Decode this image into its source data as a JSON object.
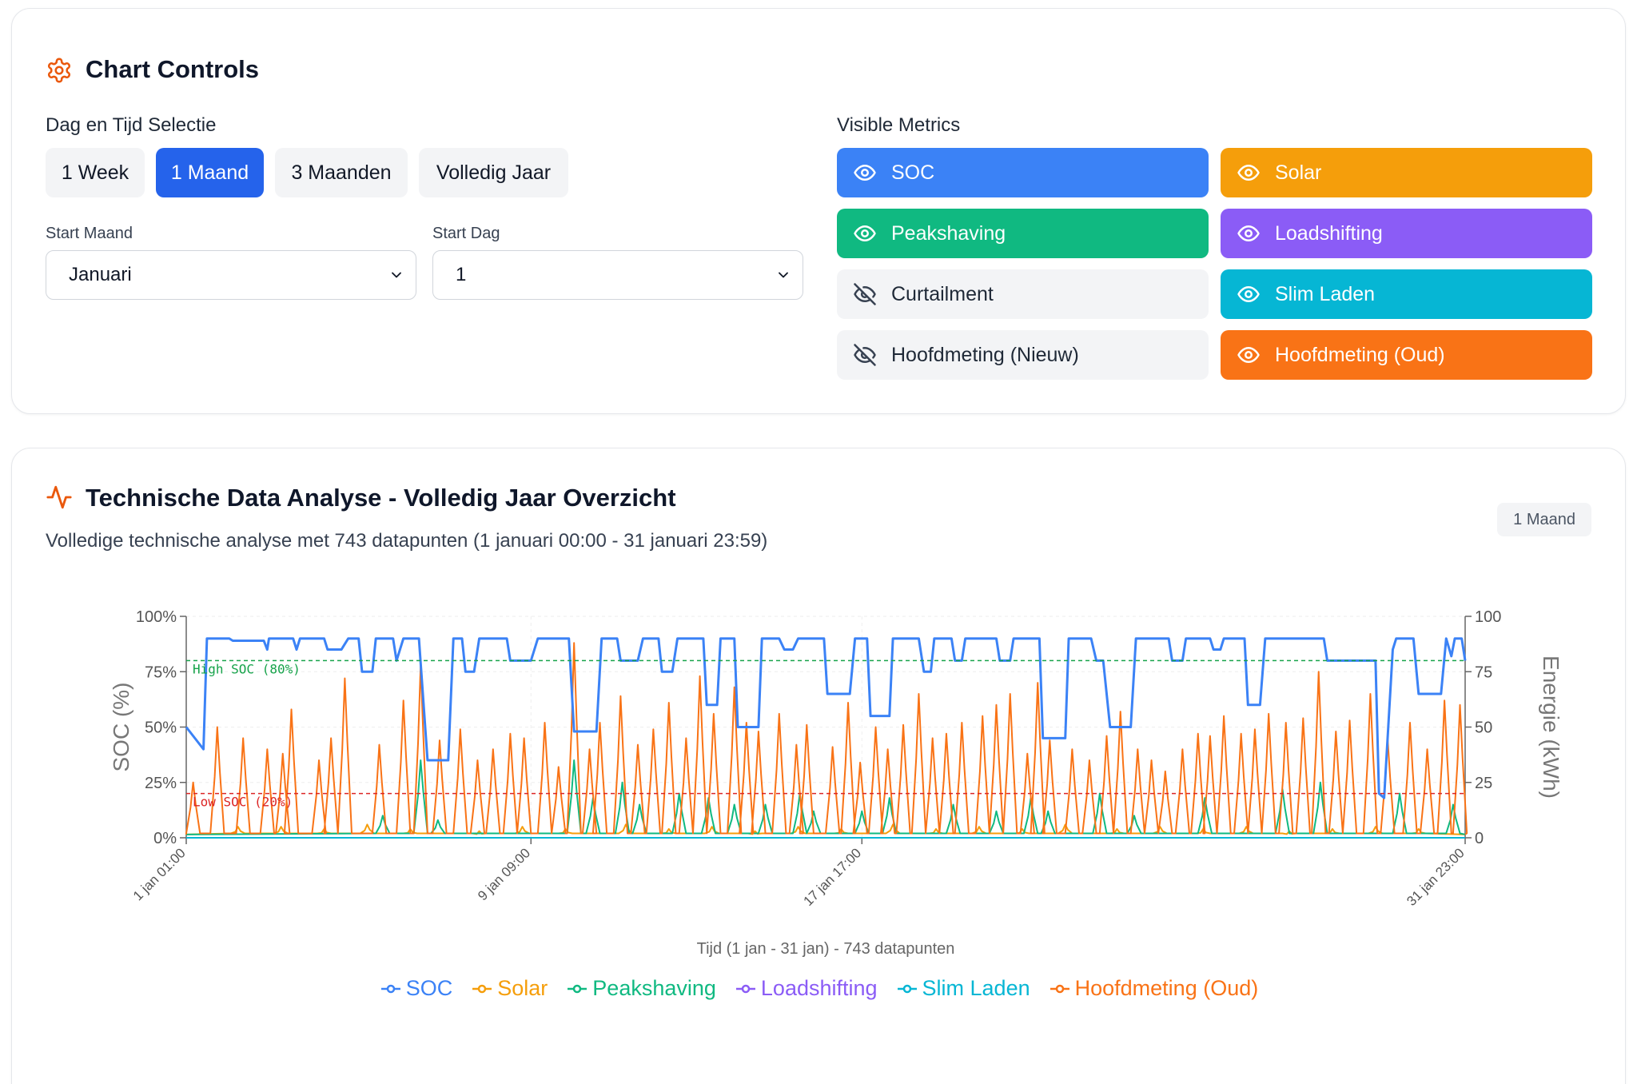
{
  "controls": {
    "title": "Chart Controls",
    "icon": "gear-icon",
    "accent": "#ea580c",
    "range_section_label": "Dag en Tijd Selectie",
    "range_buttons": [
      "1 Week",
      "1 Maand",
      "3 Maanden",
      "Volledig Jaar"
    ],
    "active_range": "1 Maand",
    "start_month": {
      "label": "Start Maand",
      "value": "Januari"
    },
    "start_day": {
      "label": "Start Dag",
      "value": "1"
    },
    "metrics_label": "Visible Metrics",
    "metrics": [
      {
        "label": "SOC",
        "visible": true,
        "color": "#3b82f6",
        "icon": "eye-icon"
      },
      {
        "label": "Solar",
        "visible": true,
        "color": "#f59e0b",
        "icon": "eye-icon"
      },
      {
        "label": "Peakshaving",
        "visible": true,
        "color": "#10b981",
        "icon": "eye-icon"
      },
      {
        "label": "Loadshifting",
        "visible": true,
        "color": "#8b5cf6",
        "icon": "eye-icon"
      },
      {
        "label": "Curtailment",
        "visible": false,
        "color": "#f3f4f6",
        "icon": "eye-off-icon"
      },
      {
        "label": "Slim Laden",
        "visible": true,
        "color": "#06b6d4",
        "icon": "eye-icon"
      },
      {
        "label": "Hoofdmeting (Nieuw)",
        "visible": false,
        "color": "#f3f4f6",
        "icon": "eye-off-icon"
      },
      {
        "label": "Hoofdmeting (Oud)",
        "visible": true,
        "color": "#f97316",
        "icon": "eye-icon"
      }
    ]
  },
  "analysis": {
    "title": "Technische Data Analyse - Volledig Jaar Overzicht",
    "icon": "activity-icon",
    "badge": "1 Maand",
    "subtitle": "Volledige technische analyse met 743 datapunten (1 januari 00:00 - 31 januari 23:59)"
  },
  "chart_data": {
    "type": "line",
    "xlabel": "Tijd (1 jan - 31 jan) - 743 datapunten",
    "ylabel_left": "SOC (%)",
    "ylabel_right": "Energie (kWh)",
    "ylim_left": [
      0,
      100
    ],
    "ylim_right": [
      0,
      100
    ],
    "left_ticks": [
      "0%",
      "25%",
      "50%",
      "75%",
      "100%"
    ],
    "right_ticks": [
      "0",
      "25",
      "50",
      "75",
      "100"
    ],
    "x_range_hours": [
      0,
      742
    ],
    "x_ticks": [
      {
        "hour": 0,
        "label": "1 jan 01:00"
      },
      {
        "hour": 200,
        "label": "9 jan 09:00"
      },
      {
        "hour": 392,
        "label": "17 jan 17:00"
      },
      {
        "hour": 742,
        "label": "31 jan 23:00"
      }
    ],
    "reference_lines": [
      {
        "label": "High SOC (80%)",
        "value": 80,
        "color": "#16a34a"
      },
      {
        "label": "Low SOC (20%)",
        "value": 20,
        "color": "#dc2626"
      }
    ],
    "grid": true,
    "legend_position": "bottom",
    "series": [
      {
        "name": "SOC",
        "color": "#3b82f6",
        "axis": "left",
        "points": [
          [
            0,
            50
          ],
          [
            10,
            40
          ],
          [
            12,
            90
          ],
          [
            25,
            90
          ],
          [
            27,
            89
          ],
          [
            45,
            89
          ],
          [
            47,
            85
          ],
          [
            48,
            90
          ],
          [
            62,
            90
          ],
          [
            64,
            85
          ],
          [
            66,
            90
          ],
          [
            80,
            90
          ],
          [
            82,
            85
          ],
          [
            90,
            85
          ],
          [
            94,
            90
          ],
          [
            100,
            90
          ],
          [
            102,
            75
          ],
          [
            108,
            75
          ],
          [
            110,
            90
          ],
          [
            120,
            90
          ],
          [
            122,
            80
          ],
          [
            126,
            90
          ],
          [
            135,
            90
          ],
          [
            140,
            35
          ],
          [
            152,
            35
          ],
          [
            155,
            90
          ],
          [
            160,
            90
          ],
          [
            162,
            75
          ],
          [
            167,
            75
          ],
          [
            170,
            90
          ],
          [
            186,
            90
          ],
          [
            188,
            80
          ],
          [
            200,
            80
          ],
          [
            204,
            90
          ],
          [
            222,
            90
          ],
          [
            225,
            48
          ],
          [
            238,
            48
          ],
          [
            241,
            90
          ],
          [
            250,
            90
          ],
          [
            252,
            80
          ],
          [
            262,
            80
          ],
          [
            265,
            90
          ],
          [
            274,
            90
          ],
          [
            276,
            75
          ],
          [
            282,
            75
          ],
          [
            285,
            90
          ],
          [
            300,
            90
          ],
          [
            302,
            60
          ],
          [
            308,
            60
          ],
          [
            310,
            90
          ],
          [
            318,
            90
          ],
          [
            320,
            50
          ],
          [
            332,
            50
          ],
          [
            334,
            90
          ],
          [
            344,
            90
          ],
          [
            347,
            85
          ],
          [
            352,
            85
          ],
          [
            355,
            90
          ],
          [
            370,
            90
          ],
          [
            372,
            65
          ],
          [
            385,
            65
          ],
          [
            388,
            90
          ],
          [
            395,
            90
          ],
          [
            397,
            55
          ],
          [
            408,
            55
          ],
          [
            410,
            90
          ],
          [
            425,
            90
          ],
          [
            428,
            75
          ],
          [
            432,
            75
          ],
          [
            434,
            90
          ],
          [
            444,
            90
          ],
          [
            446,
            80
          ],
          [
            450,
            80
          ],
          [
            452,
            90
          ],
          [
            470,
            90
          ],
          [
            472,
            80
          ],
          [
            478,
            80
          ],
          [
            480,
            90
          ],
          [
            495,
            90
          ],
          [
            497,
            45
          ],
          [
            510,
            45
          ],
          [
            512,
            90
          ],
          [
            525,
            90
          ],
          [
            528,
            80
          ],
          [
            532,
            80
          ],
          [
            536,
            50
          ],
          [
            548,
            50
          ],
          [
            551,
            90
          ],
          [
            570,
            90
          ],
          [
            572,
            80
          ],
          [
            578,
            80
          ],
          [
            580,
            90
          ],
          [
            594,
            90
          ],
          [
            596,
            85
          ],
          [
            600,
            85
          ],
          [
            602,
            90
          ],
          [
            614,
            90
          ],
          [
            616,
            60
          ],
          [
            623,
            60
          ],
          [
            626,
            90
          ],
          [
            660,
            90
          ],
          [
            662,
            80
          ],
          [
            690,
            80
          ],
          [
            692,
            20
          ],
          [
            695,
            18
          ],
          [
            700,
            85
          ],
          [
            702,
            90
          ],
          [
            712,
            90
          ],
          [
            715,
            65
          ],
          [
            728,
            65
          ],
          [
            731,
            90
          ],
          [
            734,
            82
          ],
          [
            736,
            90
          ],
          [
            740,
            90
          ],
          [
            742,
            80
          ]
        ]
      },
      {
        "name": "Hoofdmeting (Oud)",
        "color": "#f97316",
        "axis": "right",
        "peaks": [
          [
            4,
            25
          ],
          [
            18,
            50
          ],
          [
            33,
            45
          ],
          [
            47,
            40
          ],
          [
            56,
            38
          ],
          [
            61,
            58
          ],
          [
            77,
            35
          ],
          [
            84,
            45
          ],
          [
            92,
            72
          ],
          [
            112,
            42
          ],
          [
            126,
            62
          ],
          [
            136,
            78
          ],
          [
            147,
            44
          ],
          [
            159,
            49
          ],
          [
            169,
            35
          ],
          [
            178,
            40
          ],
          [
            188,
            47
          ],
          [
            196,
            45
          ],
          [
            208,
            52
          ],
          [
            216,
            32
          ],
          [
            225,
            88
          ],
          [
            234,
            40
          ],
          [
            240,
            52
          ],
          [
            252,
            64
          ],
          [
            262,
            42
          ],
          [
            271,
            49
          ],
          [
            280,
            61
          ],
          [
            290,
            45
          ],
          [
            298,
            73
          ],
          [
            306,
            56
          ],
          [
            318,
            68
          ],
          [
            325,
            52
          ],
          [
            332,
            48
          ],
          [
            344,
            56
          ],
          [
            354,
            42
          ],
          [
            360,
            51
          ],
          [
            375,
            41
          ],
          [
            384,
            61
          ],
          [
            391,
            34
          ],
          [
            400,
            50
          ],
          [
            407,
            40
          ],
          [
            416,
            51
          ],
          [
            425,
            65
          ],
          [
            433,
            45
          ],
          [
            441,
            47
          ],
          [
            450,
            52
          ],
          [
            462,
            55
          ],
          [
            470,
            60
          ],
          [
            478,
            65
          ],
          [
            488,
            38
          ],
          [
            494,
            70
          ],
          [
            501,
            44
          ],
          [
            514,
            40
          ],
          [
            524,
            35
          ],
          [
            534,
            46
          ],
          [
            542,
            57
          ],
          [
            552,
            40
          ],
          [
            560,
            35
          ],
          [
            568,
            30
          ],
          [
            578,
            40
          ],
          [
            587,
            47
          ],
          [
            594,
            46
          ],
          [
            602,
            55
          ],
          [
            612,
            47
          ],
          [
            620,
            49
          ],
          [
            628,
            56
          ],
          [
            638,
            52
          ],
          [
            648,
            54
          ],
          [
            657,
            75
          ],
          [
            667,
            48
          ],
          [
            675,
            53
          ],
          [
            687,
            65
          ],
          [
            697,
            45
          ],
          [
            710,
            52
          ],
          [
            720,
            40
          ],
          [
            730,
            62
          ],
          [
            739,
            60
          ]
        ]
      },
      {
        "name": "Peakshaving",
        "color": "#10b981",
        "axis": "right",
        "peaks": [
          [
            114,
            10
          ],
          [
            136,
            35
          ],
          [
            146,
            8
          ],
          [
            225,
            35
          ],
          [
            236,
            18
          ],
          [
            253,
            25
          ],
          [
            263,
            15
          ],
          [
            286,
            20
          ],
          [
            303,
            18
          ],
          [
            318,
            15
          ],
          [
            336,
            15
          ],
          [
            356,
            20
          ],
          [
            364,
            12
          ],
          [
            392,
            12
          ],
          [
            408,
            18
          ],
          [
            445,
            15
          ],
          [
            470,
            12
          ],
          [
            490,
            18
          ],
          [
            500,
            12
          ],
          [
            530,
            20
          ],
          [
            550,
            10
          ],
          [
            591,
            18
          ],
          [
            636,
            22
          ],
          [
            658,
            25
          ],
          [
            704,
            20
          ],
          [
            735,
            15
          ]
        ]
      },
      {
        "name": "Solar",
        "color": "#f59e0b",
        "axis": "right",
        "peaks": [
          [
            30,
            5
          ],
          [
            55,
            5
          ],
          [
            80,
            4
          ],
          [
            105,
            6
          ],
          [
            130,
            4
          ],
          [
            170,
            3
          ],
          [
            195,
            5
          ],
          [
            220,
            4
          ],
          [
            255,
            6
          ],
          [
            280,
            4
          ],
          [
            305,
            5
          ],
          [
            330,
            3
          ],
          [
            355,
            5
          ],
          [
            380,
            4
          ],
          [
            410,
            6
          ],
          [
            435,
            4
          ],
          [
            460,
            5
          ],
          [
            485,
            4
          ],
          [
            510,
            6
          ],
          [
            540,
            4
          ],
          [
            565,
            5
          ],
          [
            590,
            4
          ],
          [
            615,
            5
          ],
          [
            640,
            3
          ],
          [
            665,
            4
          ],
          [
            690,
            5
          ],
          [
            715,
            4
          ]
        ]
      },
      {
        "name": "Loadshifting",
        "color": "#8b5cf6",
        "axis": "right",
        "points": [
          [
            0,
            0
          ],
          [
            742,
            0
          ]
        ]
      },
      {
        "name": "Slim Laden",
        "color": "#06b6d4",
        "axis": "right",
        "points": [
          [
            0,
            0
          ],
          [
            742,
            0
          ]
        ]
      }
    ]
  }
}
